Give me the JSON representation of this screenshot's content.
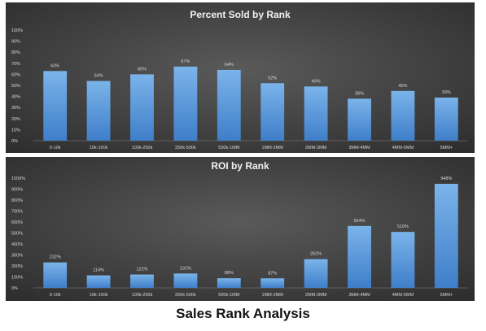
{
  "caption": "Sales Rank Analysis",
  "colors": {
    "bar_top": "#7bb4ea",
    "bar_bottom": "#3f7ec9",
    "bg_center": "#5a5a5a",
    "bg_edge": "#2c2c2c",
    "text": "#f2f2f2",
    "label": "#d8d8d8",
    "grid": "#6a6a6a"
  },
  "chart_data": [
    {
      "type": "bar",
      "title": "Percent Sold by Rank",
      "categories": [
        "0-10k",
        "10k-100k",
        "100k-250k",
        "250k-500k",
        "500k-1MM",
        "1MM-2MM",
        "2MM-3MM",
        "3MM-4MM",
        "4MM-5MM",
        "5MM+"
      ],
      "values": [
        63,
        54,
        60,
        67,
        64,
        52,
        49,
        38,
        45,
        39
      ],
      "data_labels": [
        "63%",
        "54%",
        "60%",
        "67%",
        "64%",
        "52%",
        "49%",
        "38%",
        "45%",
        "39%"
      ],
      "yticks": [
        "0%",
        "10%",
        "20%",
        "30%",
        "40%",
        "50%",
        "60%",
        "70%",
        "80%",
        "90%",
        "100%"
      ],
      "ylim": [
        0,
        100
      ],
      "ytick_step": 10,
      "grid": false,
      "legend": "none"
    },
    {
      "type": "bar",
      "title": "ROI by Rank",
      "categories": [
        "0-10k",
        "10k-100k",
        "100k-250k",
        "250k-500k",
        "500k-1MM",
        "1MM-2MM",
        "2MM-3MM",
        "3MM-4MM",
        "4MM-5MM",
        "5MM+"
      ],
      "values": [
        232,
        114,
        122,
        131,
        88,
        87,
        262,
        564,
        510,
        948
      ],
      "data_labels": [
        "232%",
        "114%",
        "122%",
        "131%",
        "88%",
        "87%",
        "262%",
        "564%",
        "510%",
        "948%"
      ],
      "yticks": [
        "0%",
        "100%",
        "200%",
        "300%",
        "400%",
        "500%",
        "600%",
        "700%",
        "800%",
        "900%",
        "1000%"
      ],
      "ylim": [
        0,
        1000
      ],
      "ytick_step": 100,
      "grid": false,
      "legend": "none"
    }
  ]
}
